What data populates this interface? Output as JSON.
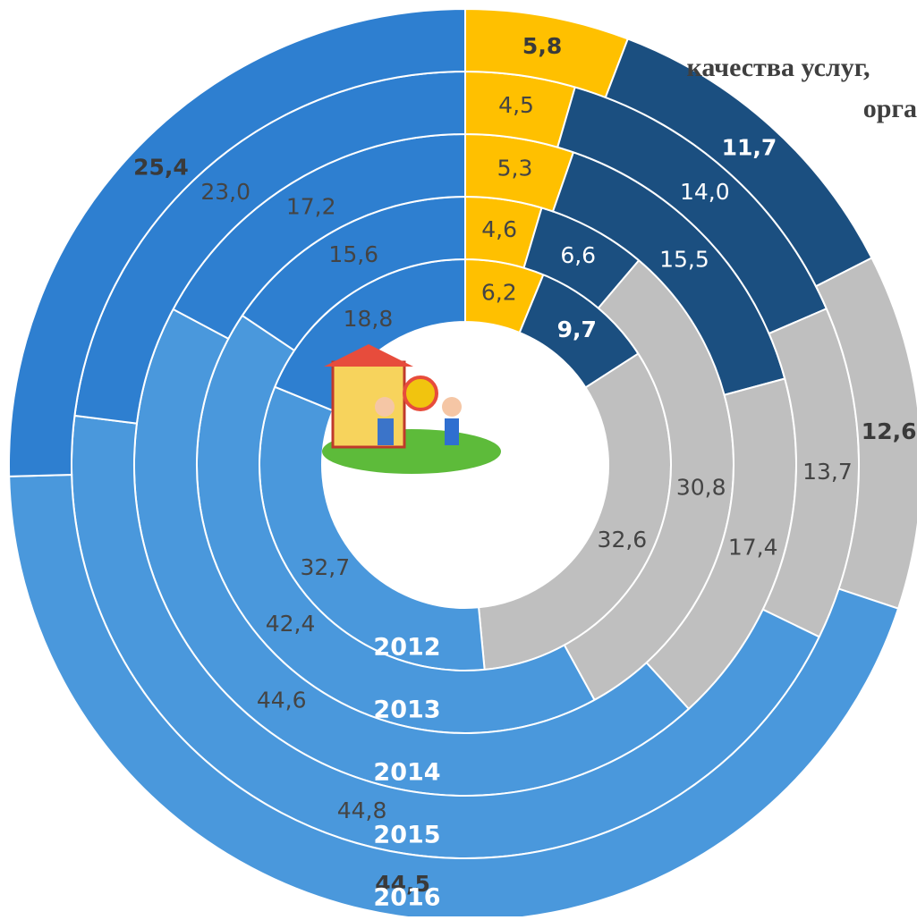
{
  "chart_data": {
    "type": "donut",
    "categories": [
      "2012",
      "2013",
      "2014",
      "2015",
      "2016"
    ],
    "series": [
      {
        "color": "#FFC000",
        "values": [
          6.2,
          4.6,
          5.3,
          4.5,
          5.8
        ],
        "value_labels": [
          "6,2",
          "4,6",
          "5,3",
          "4,5",
          "5,8"
        ]
      },
      {
        "color": "#1B4F80",
        "values": [
          9.7,
          6.6,
          15.5,
          14.0,
          11.7
        ],
        "value_labels": [
          "9,7",
          "6,6",
          "15,5",
          "14,0",
          "11,7"
        ]
      },
      {
        "color": "#BFBFBF",
        "values": [
          32.6,
          30.8,
          17.4,
          13.7,
          12.6
        ],
        "value_labels": [
          "32,6",
          "30,8",
          "17,4",
          "13,7",
          "12,6"
        ]
      },
      {
        "color": "#4A98DC",
        "values": [
          32.7,
          42.4,
          44.6,
          44.8,
          44.5
        ],
        "value_labels": [
          "32,7",
          "42,4",
          "44,6",
          "44,8",
          "44,5"
        ]
      },
      {
        "color": "#2E7FD0",
        "values": [
          18.8,
          15.6,
          17.2,
          23.0,
          25.4
        ],
        "value_labels": [
          "18,8",
          "15,6",
          "17,2",
          "23,0",
          "25,4"
        ]
      }
    ],
    "annotations": [
      "качества услуг,",
      "орга"
    ]
  }
}
